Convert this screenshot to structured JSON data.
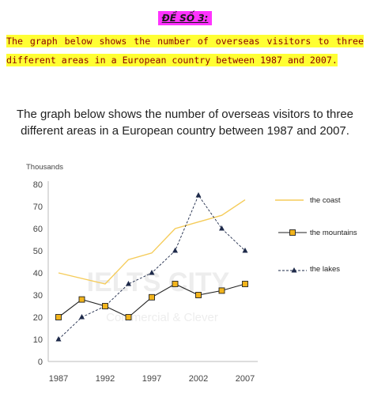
{
  "heading": "ĐỀ SỐ 3:",
  "task_text": "The graph below shows the number of overseas visitors to three different areas in a European country between 1987 and 2007.",
  "watermark": {
    "brand": "IELTS CITY",
    "tagline": "Commercial & Clever"
  },
  "colors": {
    "heading_bg": "#ff33ff",
    "highlight": "#ffff33",
    "task_text": "#8a0000",
    "coast": "#f5cc5a",
    "mountains": "#222222",
    "marker_fill": "#f2b41c",
    "lakes": "#1e2a4a"
  },
  "chart_data": {
    "type": "line",
    "title": "The graph below shows the number of overseas visitors to three different areas in a European country between 1987 and 2007.",
    "ylabel": "Thousands",
    "xlabel": "",
    "ylim": [
      0,
      80
    ],
    "xlim": [
      1987,
      2007
    ],
    "xticks": [
      1987,
      1992,
      1997,
      2002,
      2007
    ],
    "yticks": [
      0,
      10,
      20,
      30,
      40,
      50,
      60,
      70,
      80
    ],
    "grid": false,
    "legend_position": "right",
    "series": [
      {
        "name": "the coast",
        "style": "line",
        "color": "#f5cc5a",
        "x": [
          1987,
          1992,
          1994.5,
          1997,
          1999.5,
          2002,
          2004.5,
          2007
        ],
        "y": [
          40,
          35,
          46,
          49,
          60,
          63,
          66,
          73
        ]
      },
      {
        "name": "the mountains",
        "style": "line-square-markers",
        "color": "#222222",
        "x": [
          1987,
          1989.5,
          1992,
          1994.5,
          1997,
          1999.5,
          2002,
          2004.5,
          2007
        ],
        "y": [
          20,
          28,
          25,
          20,
          29,
          35,
          30,
          32,
          35
        ]
      },
      {
        "name": "the lakes",
        "style": "dashed-triangle-markers",
        "color": "#1e2a4a",
        "x": [
          1987,
          1989.5,
          1992,
          1994.5,
          1997,
          1999.5,
          2002,
          2004.5,
          2007
        ],
        "y": [
          10,
          20,
          25,
          35,
          40,
          50,
          75,
          60,
          50
        ]
      }
    ]
  }
}
